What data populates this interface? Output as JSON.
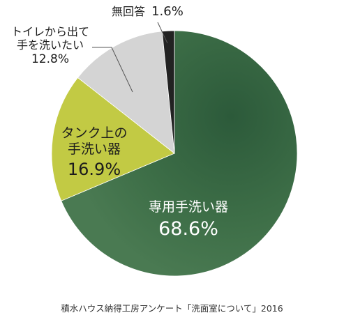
{
  "chart_data": {
    "type": "pie",
    "start_angle_deg": 0,
    "direction": "clockwise",
    "slices": [
      {
        "label": "専用手洗い器",
        "value": 68.6,
        "value_label": "68.6%",
        "color": "#3a6b45"
      },
      {
        "label_lines": [
          "タンク上の",
          "手洗い器"
        ],
        "value": 16.9,
        "value_label": "16.9%",
        "color": "#c2ca44"
      },
      {
        "label_lines": [
          "トイレから出て",
          "手を洗いたい"
        ],
        "value": 12.8,
        "value_label": "12.8%",
        "color": "#d4d4d4"
      },
      {
        "label": "無回答",
        "value": 1.6,
        "value_label": "1.6%",
        "color": "#222222"
      }
    ],
    "source": "積水ハウス納得工房アンケート「洗面室について」2016"
  }
}
